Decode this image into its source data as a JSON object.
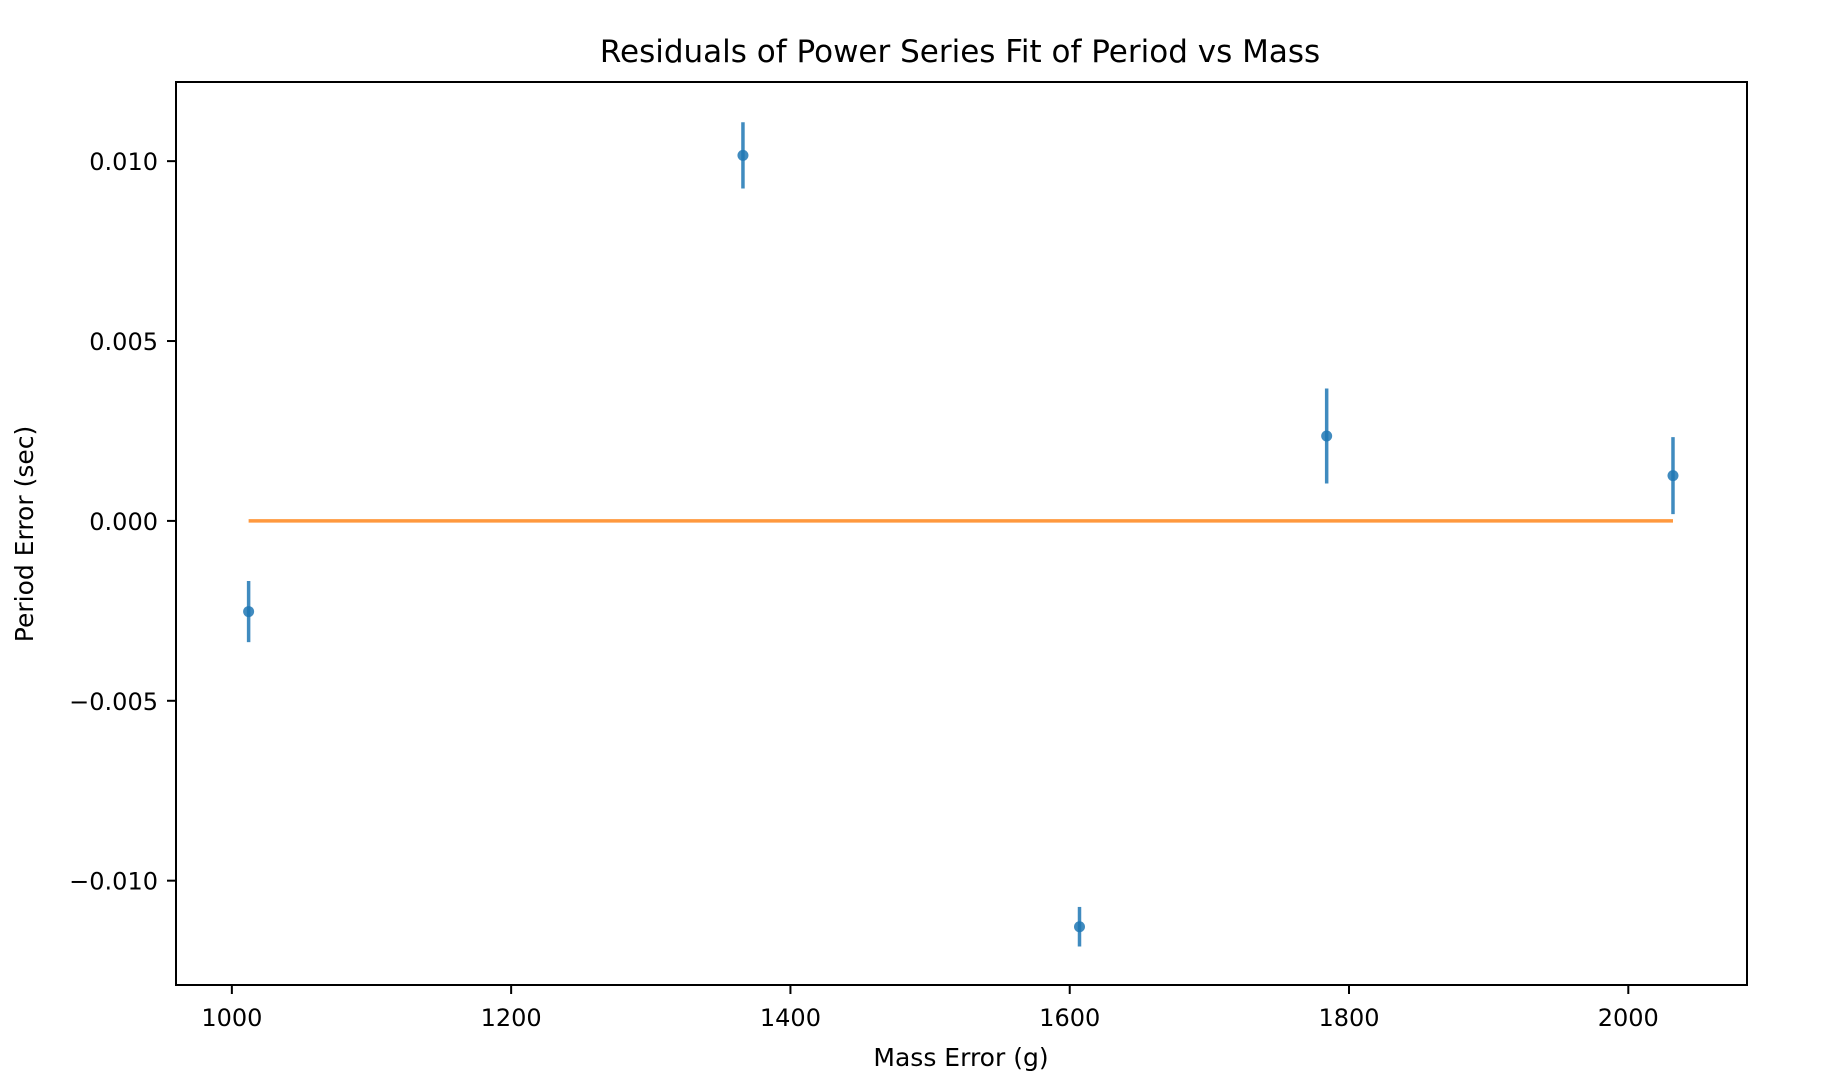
{
  "chart_data": {
    "type": "scatter",
    "title": "Residuals of Power Series Fit of Period vs Mass",
    "xlabel": "Mass Error (g)",
    "ylabel": "Period Error (sec)",
    "xlim": [
      960,
      2085
    ],
    "ylim": [
      -0.0129,
      0.0122
    ],
    "x_ticks": [
      1000,
      1200,
      1400,
      1600,
      1800,
      2000
    ],
    "x_tick_labels": [
      "1000",
      "1200",
      "1400",
      "1600",
      "1800",
      "2000"
    ],
    "y_ticks": [
      0.01,
      0.005,
      0.0,
      -0.005,
      -0.01
    ],
    "y_tick_labels": [
      "0.010",
      "0.005",
      "0.000",
      "−0.005",
      "−0.010"
    ],
    "grid": false,
    "series": [
      {
        "kind": "errorbar",
        "color": "#1f77b4",
        "points": [
          {
            "x": 1012,
            "y": -0.00252,
            "yerr": 0.00085
          },
          {
            "x": 1366,
            "y": 0.01016,
            "yerr": 0.00092
          },
          {
            "x": 1607,
            "y": -0.01128,
            "yerr": 0.00055
          },
          {
            "x": 1784,
            "y": 0.00236,
            "yerr": 0.00132
          },
          {
            "x": 2032,
            "y": 0.00126,
            "yerr": 0.00107
          }
        ]
      },
      {
        "kind": "line",
        "color": "#ff7f0e",
        "x": [
          1012,
          2032
        ],
        "y": [
          0.0,
          0.0
        ]
      }
    ]
  }
}
